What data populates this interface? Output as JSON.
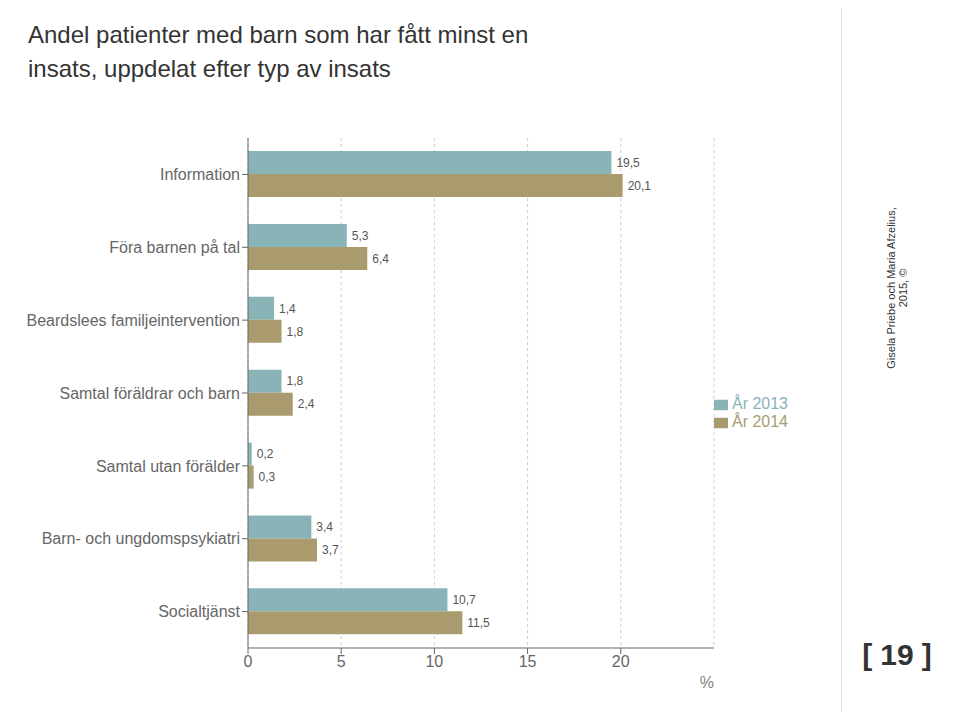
{
  "chart_data": {
    "type": "bar",
    "orientation": "horizontal",
    "title": "Andel patienter med barn som har fått minst en\ninsats, uppdelat efter typ av insats",
    "x_label": "%",
    "categories": [
      "Information",
      "Föra barnen på tal",
      "Beardslees familjeintervention",
      "Samtal föräldrar och barn",
      "Samtal utan förälder",
      "Barn- och ungdomspsykiatri",
      "Socialtjänst"
    ],
    "series": [
      {
        "name": "År 2013",
        "color": "#88b4b7",
        "values": [
          19.5,
          5.3,
          1.4,
          1.8,
          0.2,
          3.4,
          10.7
        ],
        "value_labels": [
          "19,5",
          "5,3",
          "1,4",
          "1,8",
          "0,2",
          "3,4",
          "10,7"
        ]
      },
      {
        "name": "År 2014",
        "color": "#a99b6e",
        "values": [
          20.1,
          6.4,
          1.8,
          2.4,
          0.3,
          3.7,
          11.5
        ],
        "value_labels": [
          "20,1",
          "6,4",
          "1,8",
          "2,4",
          "0,3",
          "3,7",
          "11,5"
        ]
      }
    ],
    "xlim": [
      0,
      25
    ],
    "xticks": [
      0,
      5,
      10,
      15,
      20
    ],
    "grid": true,
    "data_labels": true,
    "annotations": [
      "Gisela Priebe och Maria Afzelius,\n2015, ©",
      "[",
      "19",
      "]"
    ]
  }
}
